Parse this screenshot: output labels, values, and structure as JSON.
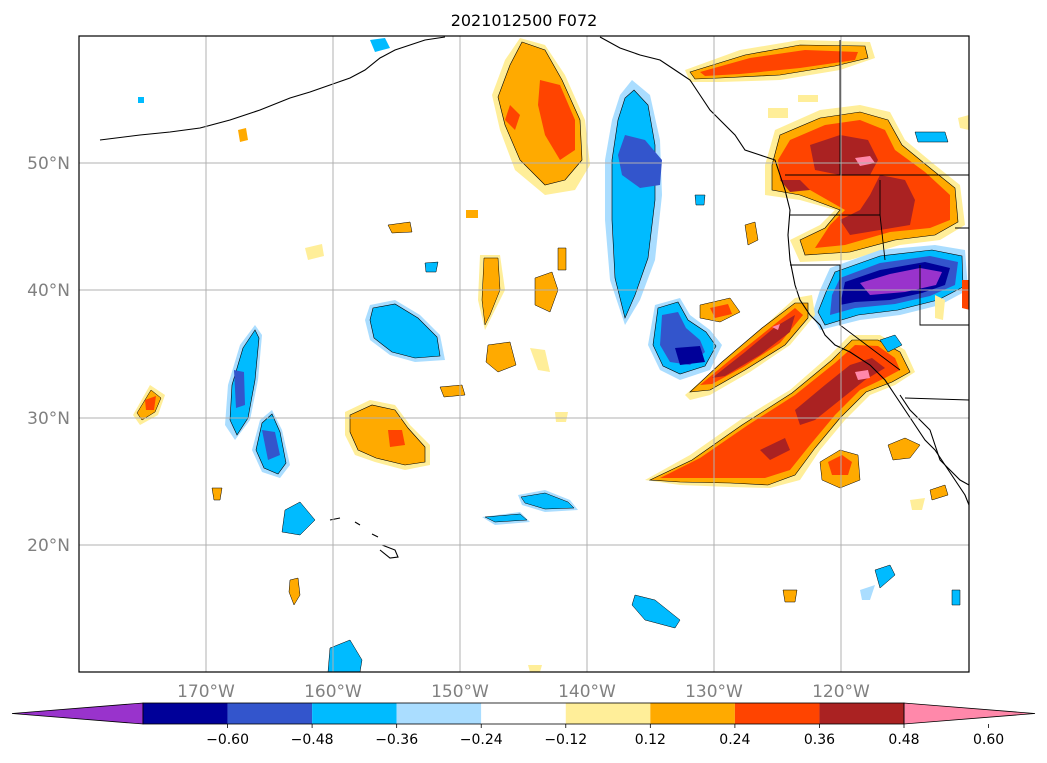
{
  "title": "2021012500 F072",
  "map": {
    "extent": {
      "lon_min": -180,
      "lon_max": -110,
      "lat_min": 10,
      "lat_max": 60
    },
    "gridlines": true,
    "lat_ticks": [
      {
        "value": 50,
        "label": "50°N"
      },
      {
        "value": 40,
        "label": "40°N"
      },
      {
        "value": 30,
        "label": "30°N"
      },
      {
        "value": 20,
        "label": "20°N"
      }
    ],
    "lon_ticks": [
      {
        "value": -170,
        "label": "170°W"
      },
      {
        "value": -160,
        "label": "160°W"
      },
      {
        "value": -150,
        "label": "150°W"
      },
      {
        "value": -140,
        "label": "140°W"
      },
      {
        "value": -130,
        "label": "130°W"
      },
      {
        "value": -120,
        "label": "120°W"
      }
    ]
  },
  "colorbar": {
    "orientation": "horizontal",
    "extend": "both",
    "levels": [
      "-0.60",
      "-0.48",
      "-0.36",
      "-0.24",
      "-0.12",
      "0.12",
      "0.24",
      "0.36",
      "0.48",
      "0.60"
    ],
    "colors": [
      "#9933cc",
      "#000099",
      "#3355cc",
      "#00bbff",
      "#aaddff",
      "#ffffff",
      "#ffee99",
      "#ffaa00",
      "#ff4400",
      "#aa2222",
      "#ff88aa"
    ]
  },
  "anomaly_regions": [
    {
      "name": "gulf-alaska-positive",
      "level": 0.36,
      "color": "#ffaa00"
    },
    {
      "name": "offshore-trough-negative",
      "level": -0.36,
      "color": "#00bbff"
    },
    {
      "name": "pacific-northwest-positive",
      "level": 0.48,
      "color": "#aa2222"
    },
    {
      "name": "northern-california-negative",
      "level": -0.6,
      "color": "#9933cc"
    },
    {
      "name": "subtropical-band-positive",
      "level": 0.48,
      "color": "#aa2222"
    },
    {
      "name": "west-coast-band-positive",
      "level": 0.48,
      "color": "#aa2222"
    },
    {
      "name": "offshore-low-negative",
      "level": -0.48,
      "color": "#000099"
    }
  ]
}
